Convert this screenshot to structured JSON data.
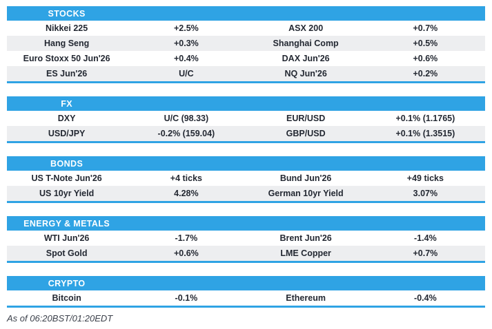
{
  "colors": {
    "accent": "#2FA3E4",
    "stripe": "#EDEEF0",
    "text": "#232832",
    "muted": "#3C414B",
    "background": "#FFFFFF"
  },
  "chart_data": [
    {
      "type": "table",
      "title": "STOCKS",
      "rows": [
        [
          "Nikkei 225",
          "+2.5%",
          "ASX 200",
          "+0.7%"
        ],
        [
          "Hang Seng",
          "+0.3%",
          "Shanghai Comp",
          "+0.5%"
        ],
        [
          "Euro Stoxx 50 Jun'26",
          "+0.4%",
          "DAX Jun'26",
          "+0.6%"
        ],
        [
          "ES Jun'26",
          "U/C",
          "NQ Jun'26",
          "+0.2%"
        ]
      ]
    },
    {
      "type": "table",
      "title": "FX",
      "rows": [
        [
          "DXY",
          "U/C (98.33)",
          "EUR/USD",
          "+0.1% (1.1765)"
        ],
        [
          "USD/JPY",
          "-0.2% (159.04)",
          "GBP/USD",
          "+0.1% (1.3515)"
        ]
      ]
    },
    {
      "type": "table",
      "title": "BONDS",
      "rows": [
        [
          "US T-Note Jun'26",
          "+4 ticks",
          "Bund Jun'26",
          "+49 ticks"
        ],
        [
          "US 10yr Yield",
          "4.28%",
          "German 10yr Yield",
          "3.07%"
        ]
      ]
    },
    {
      "type": "table",
      "title": "ENERGY & METALS",
      "rows": [
        [
          "WTI Jun'26",
          "-1.7%",
          "Brent Jun'26",
          "-1.4%"
        ],
        [
          "Spot Gold",
          "+0.6%",
          "LME Copper",
          "+0.7%"
        ]
      ]
    },
    {
      "type": "table",
      "title": "CRYPTO",
      "rows": [
        [
          "Bitcoin",
          "-0.1%",
          "Ethereum",
          "-0.4%"
        ]
      ]
    }
  ],
  "footer": {
    "as_of": "As of 06:20BST/01:20EDT"
  }
}
